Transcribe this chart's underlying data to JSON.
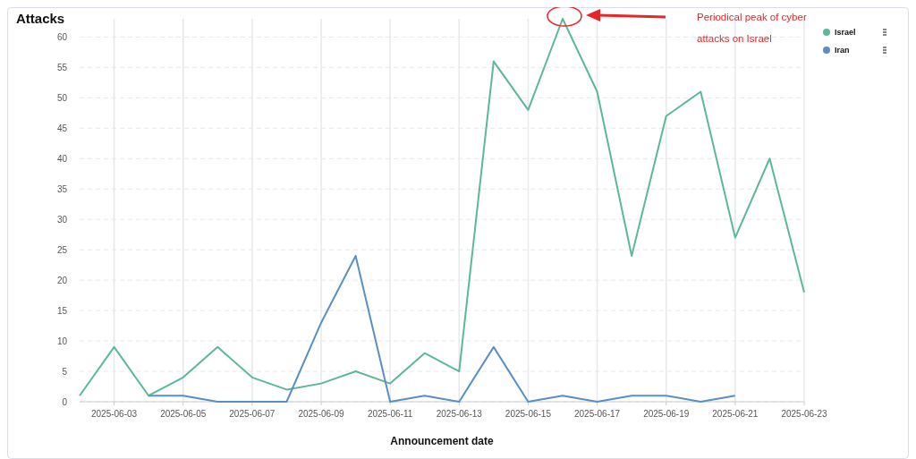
{
  "chart_data": {
    "type": "line",
    "title": "Attacks",
    "xlabel": "Announcement date",
    "xlim": [
      "2025-06-02",
      "2025-06-23"
    ],
    "xticks": [
      "2025-06-03",
      "2025-06-05",
      "2025-06-07",
      "2025-06-09",
      "2025-06-11",
      "2025-06-13",
      "2025-06-15",
      "2025-06-17",
      "2025-06-19",
      "2025-06-21",
      "2025-06-23"
    ],
    "ylim": [
      0,
      63
    ],
    "yticks": [
      0,
      5,
      10,
      15,
      20,
      25,
      30,
      35,
      40,
      45,
      50,
      55,
      60
    ],
    "grid": true,
    "legend": "top right",
    "marker": "none",
    "line_style": "solid",
    "annotations": [
      "Periodical peak of cyber attacks on Israel"
    ],
    "series": [
      {
        "name": "Israel",
        "color": "#5cb896",
        "x": [
          "2025-06-02",
          "2025-06-03",
          "2025-06-04",
          "2025-06-05",
          "2025-06-06",
          "2025-06-07",
          "2025-06-08",
          "2025-06-09",
          "2025-06-10",
          "2025-06-11",
          "2025-06-12",
          "2025-06-13",
          "2025-06-14",
          "2025-06-15",
          "2025-06-16",
          "2025-06-17",
          "2025-06-18",
          "2025-06-19",
          "2025-06-20",
          "2025-06-21",
          "2025-06-22",
          "2025-06-23"
        ],
        "values": [
          1,
          9,
          1,
          4,
          9,
          4,
          2,
          3,
          5,
          3,
          8,
          5,
          56,
          48,
          63,
          51,
          24,
          47,
          51,
          27,
          40,
          18
        ]
      },
      {
        "name": "Iran",
        "color": "#5b8ec4",
        "x": [
          "2025-06-04",
          "2025-06-05",
          "2025-06-06",
          "2025-06-07",
          "2025-06-08",
          "2025-06-09",
          "2025-06-10",
          "2025-06-11",
          "2025-06-12",
          "2025-06-13",
          "2025-06-14",
          "2025-06-15",
          "2025-06-16",
          "2025-06-17",
          "2025-06-18",
          "2025-06-19",
          "2025-06-20",
          "2025-06-21"
        ],
        "values": [
          1,
          1,
          0,
          0,
          0,
          13,
          24,
          0,
          1,
          0,
          9,
          0,
          1,
          0,
          1,
          1,
          0,
          1
        ]
      }
    ]
  }
}
